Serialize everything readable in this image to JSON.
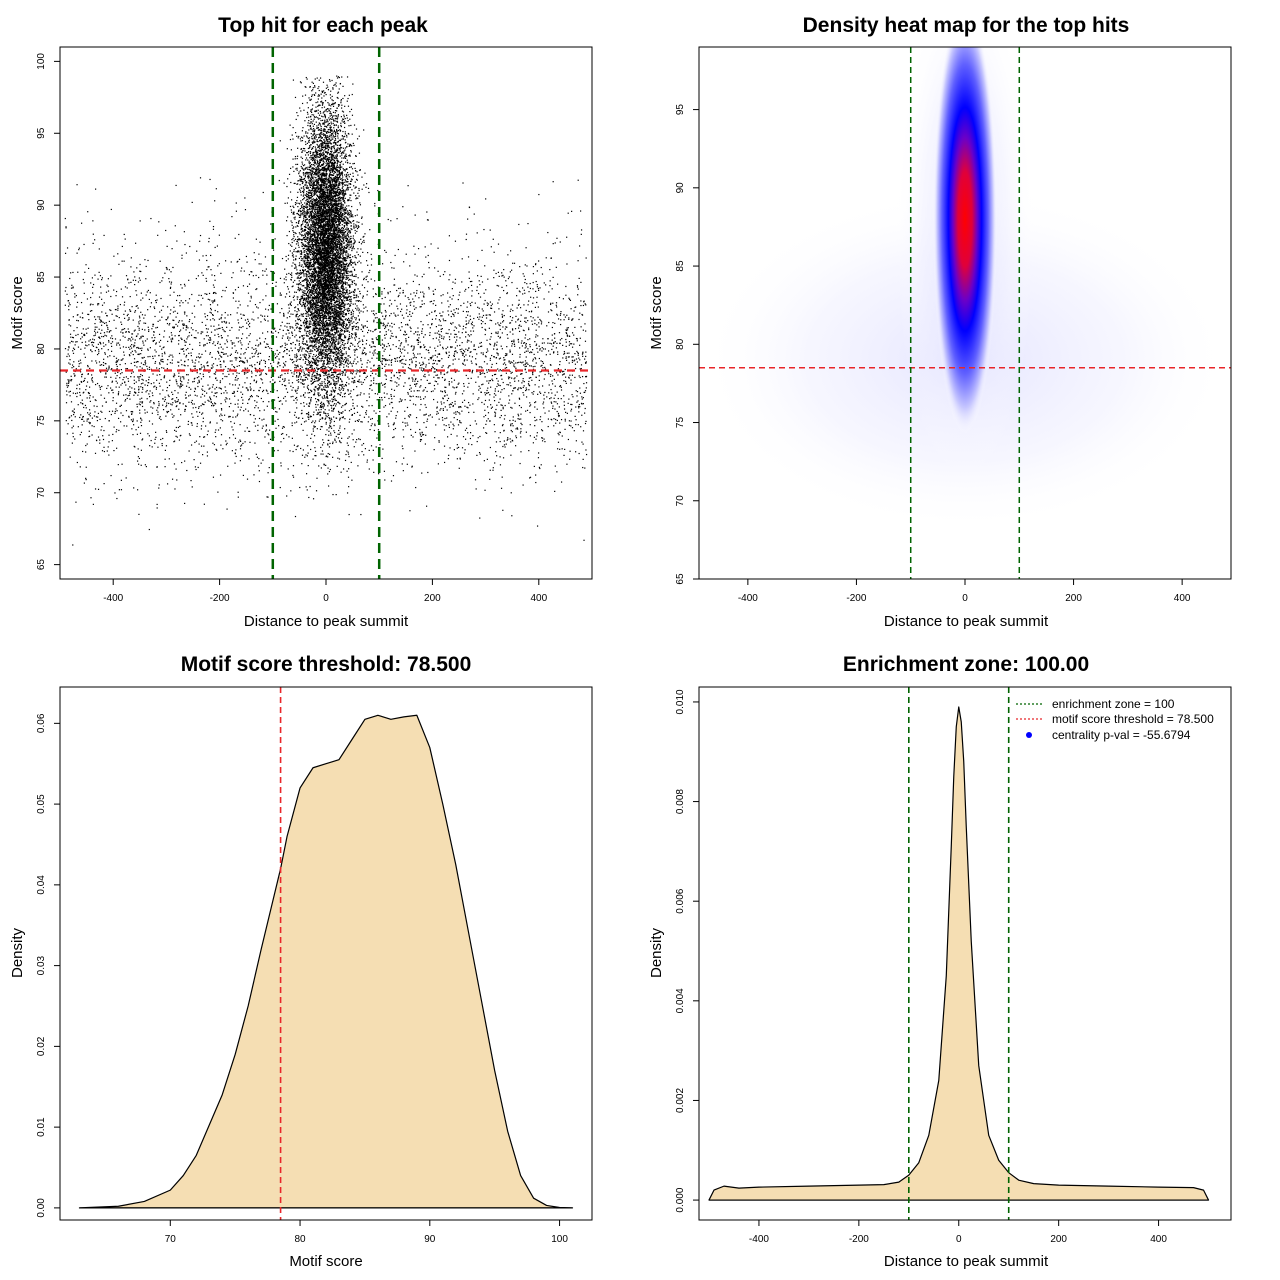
{
  "colors": {
    "threshold_line": "#e8262a",
    "zone_line": "#006400",
    "density_fill": "#f5deb3",
    "heat_mid": "#0000ff",
    "heat_high": "#ff0000",
    "points": "#000000",
    "legend_dot": "#0000ff"
  },
  "chart_data": [
    {
      "id": "scatter",
      "type": "scatter",
      "title": "Top hit for each peak",
      "xlabel": "Distance to peak summit",
      "ylabel": "Motif score",
      "xlim": [
        -500,
        500
      ],
      "ylim": [
        64,
        101
      ],
      "xticks": [
        -400,
        -200,
        0,
        200,
        400
      ],
      "yticks": [
        65,
        70,
        75,
        80,
        85,
        90,
        95,
        100
      ],
      "hlines": [
        78.5
      ],
      "vlines": [
        -100,
        100
      ],
      "grid": false,
      "point_distribution": {
        "central_cluster": {
          "x_center": 0,
          "x_sd": 25,
          "y_center": 87,
          "y_sd": 5,
          "y_range": [
            70,
            99
          ]
        },
        "background": {
          "x_range": [
            -490,
            490
          ],
          "y_center": 79,
          "y_sd": 3.5,
          "y_range": [
            65,
            98
          ]
        }
      }
    },
    {
      "id": "heatmap",
      "type": "heatmap",
      "title": "Density heat map for the top hits",
      "xlabel": "Distance to peak summit",
      "ylabel": "Motif score",
      "xlim": [
        -490,
        490
      ],
      "ylim": [
        65,
        99
      ],
      "xticks": [
        -400,
        -200,
        0,
        200,
        400
      ],
      "yticks": [
        65,
        70,
        75,
        80,
        85,
        90,
        95
      ],
      "hlines": [
        78.5
      ],
      "vlines": [
        -100,
        100
      ],
      "peak": {
        "x": 0,
        "y": 88.5
      },
      "color_scale": [
        "white",
        "blue",
        "red"
      ]
    },
    {
      "id": "score_density",
      "type": "area",
      "title": "Motif score threshold: 78.500",
      "xlabel": "Motif score",
      "ylabel": "Density",
      "xlim": [
        61.5,
        102.5
      ],
      "ylim": [
        -0.0015,
        0.0645
      ],
      "xticks": [
        70,
        80,
        90,
        100
      ],
      "yticks": [
        0.0,
        0.01,
        0.02,
        0.03,
        0.04,
        0.05,
        0.06
      ],
      "ytick_labels": [
        "0.00",
        "0.01",
        "0.02",
        "0.03",
        "0.04",
        "0.05",
        "0.06"
      ],
      "vlines": [
        78.5
      ],
      "x": [
        63,
        66,
        68,
        70,
        71,
        72,
        74,
        75,
        76,
        77,
        78.5,
        79,
        80,
        81,
        82,
        83,
        84,
        85,
        86,
        87,
        88,
        89,
        90,
        91,
        92,
        93,
        94,
        95,
        96,
        97,
        98,
        99,
        100,
        101
      ],
      "y": [
        0.0,
        0.0002,
        0.0008,
        0.0022,
        0.004,
        0.0065,
        0.014,
        0.019,
        0.025,
        0.032,
        0.042,
        0.046,
        0.052,
        0.0545,
        0.055,
        0.0555,
        0.058,
        0.0605,
        0.061,
        0.0605,
        0.0608,
        0.061,
        0.057,
        0.05,
        0.0425,
        0.034,
        0.0255,
        0.017,
        0.0095,
        0.004,
        0.0012,
        0.0003,
        5e-05,
        0.0
      ]
    },
    {
      "id": "distance_density",
      "type": "area",
      "title": "Enrichment zone: 100.00",
      "xlabel": "Distance to peak summit",
      "ylabel": "Density",
      "xlim": [
        -520,
        545
      ],
      "ylim": [
        -0.0004,
        0.0103
      ],
      "xticks": [
        -400,
        -200,
        0,
        200,
        400
      ],
      "yticks": [
        0.0,
        0.002,
        0.004,
        0.006,
        0.008,
        0.01
      ],
      "ytick_labels": [
        "0.000",
        "0.002",
        "0.004",
        "0.006",
        "0.008",
        "0.010"
      ],
      "vlines": [
        -100,
        100
      ],
      "x": [
        -500,
        -490,
        -470,
        -440,
        -400,
        -300,
        -200,
        -150,
        -120,
        -100,
        -80,
        -60,
        -40,
        -25,
        -15,
        -10,
        -5,
        0,
        5,
        10,
        15,
        25,
        40,
        60,
        80,
        100,
        120,
        150,
        200,
        300,
        400,
        470,
        490,
        500
      ],
      "y": [
        0.0,
        0.0002,
        0.00028,
        0.00024,
        0.00026,
        0.00028,
        0.0003,
        0.00031,
        0.00036,
        0.0005,
        0.00075,
        0.0013,
        0.0024,
        0.0045,
        0.0071,
        0.0085,
        0.0095,
        0.0099,
        0.0096,
        0.0088,
        0.0075,
        0.0052,
        0.0027,
        0.0013,
        0.0008,
        0.00055,
        0.0004,
        0.00033,
        0.0003,
        0.00028,
        0.00026,
        0.00025,
        0.0002,
        0.0
      ],
      "legend": {
        "position": "top-right",
        "entries": [
          {
            "label": "enrichment zone = 100",
            "style": "dotted-line",
            "color": "#006400"
          },
          {
            "label": "motif score threshold = 78.500",
            "style": "dotted-line",
            "color": "#e8262a"
          },
          {
            "label": "centrality p-val = -55.6794",
            "style": "dot",
            "color": "#0000ff"
          }
        ]
      }
    }
  ]
}
